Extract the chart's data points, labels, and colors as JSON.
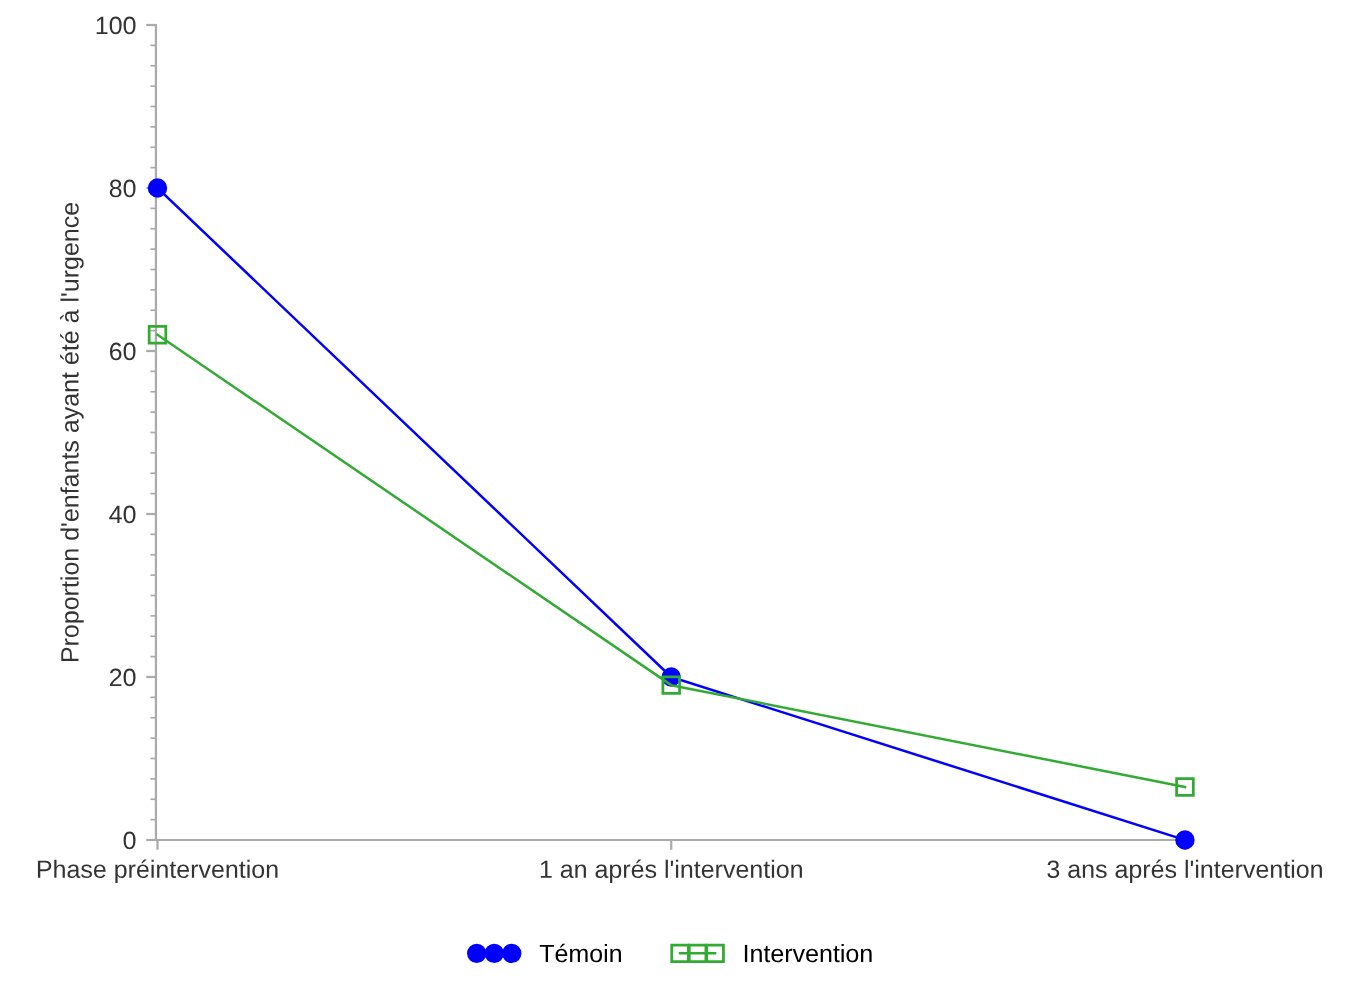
{
  "chart_data": {
    "type": "line",
    "ylabel": "Proportion d'enfants ayant été à l'urgence",
    "categories": [
      "Phase préintervention",
      "1 an aprés l'intervention",
      "3 ans aprés l'intervention"
    ],
    "ylim": [
      0,
      100
    ],
    "yticks": [
      0,
      20,
      40,
      60,
      80,
      100
    ],
    "grid": false,
    "legend": "bottom",
    "line_style": "solid",
    "series": [
      {
        "name": "Témoin",
        "color": "#0000ff",
        "marker": "circle",
        "values": [
          80,
          20,
          0
        ]
      },
      {
        "name": "Intervention",
        "color": "#33aa33",
        "marker": "square",
        "values": [
          62,
          19,
          6.5
        ]
      }
    ]
  }
}
